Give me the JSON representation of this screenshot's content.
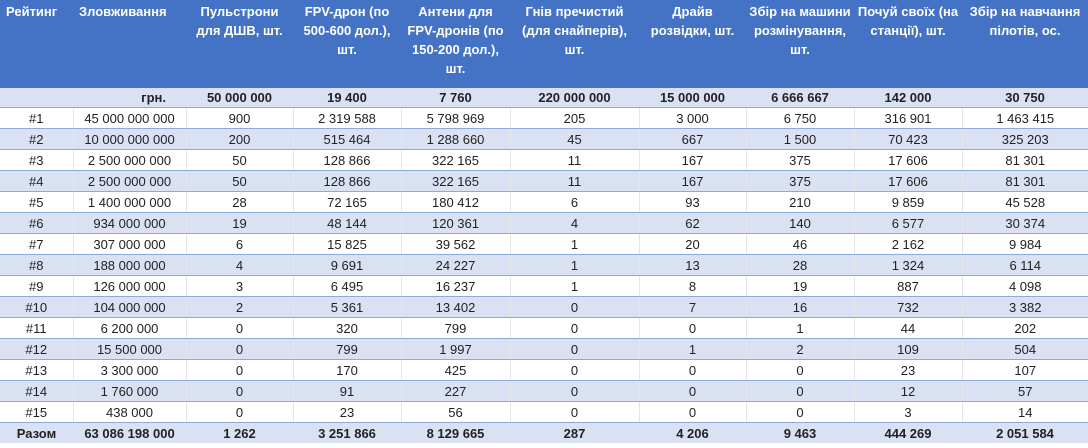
{
  "colors": {
    "header": "#4472C4",
    "stripe": "#D9E1F2"
  },
  "headers": [
    "Рейтинг",
    "Зловживання",
    "Пульстрони для ДШВ, шт.",
    "FPV-дрон (по 500-600 дол.), шт.",
    "Антени для FPV-дронів (по 150-200 дол.), шт.",
    "Гнів пречистий (для снайперів), шт.",
    "Драйв розвідки, шт.",
    "Збір на машини розмінування, шт.",
    "Почуй своїх (на станції), шт.",
    "Збір на навчання пілотів, ос."
  ],
  "unit_row": [
    "",
    "грн.",
    "50 000 000",
    "19 400",
    "7 760",
    "220 000 000",
    "15 000 000",
    "6 666 667",
    "142 000",
    "30 750"
  ],
  "rows": [
    [
      "#1",
      "45 000 000 000",
      "900",
      "2 319 588",
      "5 798 969",
      "205",
      "3 000",
      "6 750",
      "316 901",
      "1 463 415"
    ],
    [
      "#2",
      "10 000 000 000",
      "200",
      "515 464",
      "1 288 660",
      "45",
      "667",
      "1 500",
      "70 423",
      "325 203"
    ],
    [
      "#3",
      "2 500 000 000",
      "50",
      "128 866",
      "322 165",
      "11",
      "167",
      "375",
      "17 606",
      "81 301"
    ],
    [
      "#4",
      "2 500 000 000",
      "50",
      "128 866",
      "322 165",
      "11",
      "167",
      "375",
      "17 606",
      "81 301"
    ],
    [
      "#5",
      "1 400 000 000",
      "28",
      "72 165",
      "180 412",
      "6",
      "93",
      "210",
      "9 859",
      "45 528"
    ],
    [
      "#6",
      "934 000 000",
      "19",
      "48 144",
      "120 361",
      "4",
      "62",
      "140",
      "6 577",
      "30 374"
    ],
    [
      "#7",
      "307 000 000",
      "6",
      "15 825",
      "39 562",
      "1",
      "20",
      "46",
      "2 162",
      "9 984"
    ],
    [
      "#8",
      "188 000 000",
      "4",
      "9 691",
      "24 227",
      "1",
      "13",
      "28",
      "1 324",
      "6 114"
    ],
    [
      "#9",
      "126 000 000",
      "3",
      "6 495",
      "16 237",
      "1",
      "8",
      "19",
      "887",
      "4 098"
    ],
    [
      "#10",
      "104 000 000",
      "2",
      "5 361",
      "13 402",
      "0",
      "7",
      "16",
      "732",
      "3 382"
    ],
    [
      "#11",
      "6 200 000",
      "0",
      "320",
      "799",
      "0",
      "0",
      "1",
      "44",
      "202"
    ],
    [
      "#12",
      "15 500 000",
      "0",
      "799",
      "1 997",
      "0",
      "1",
      "2",
      "109",
      "504"
    ],
    [
      "#13",
      "3 300 000",
      "0",
      "170",
      "425",
      "0",
      "0",
      "0",
      "23",
      "107"
    ],
    [
      "#14",
      "1 760 000",
      "0",
      "91",
      "227",
      "0",
      "0",
      "0",
      "12",
      "57"
    ],
    [
      "#15",
      "438 000",
      "0",
      "23",
      "56",
      "0",
      "0",
      "0",
      "3",
      "14"
    ]
  ],
  "total_row": [
    "Разом",
    "63 086 198 000",
    "1 262",
    "3 251 866",
    "8 129 665",
    "287",
    "4 206",
    "9 463",
    "444 269",
    "2 051 584"
  ]
}
